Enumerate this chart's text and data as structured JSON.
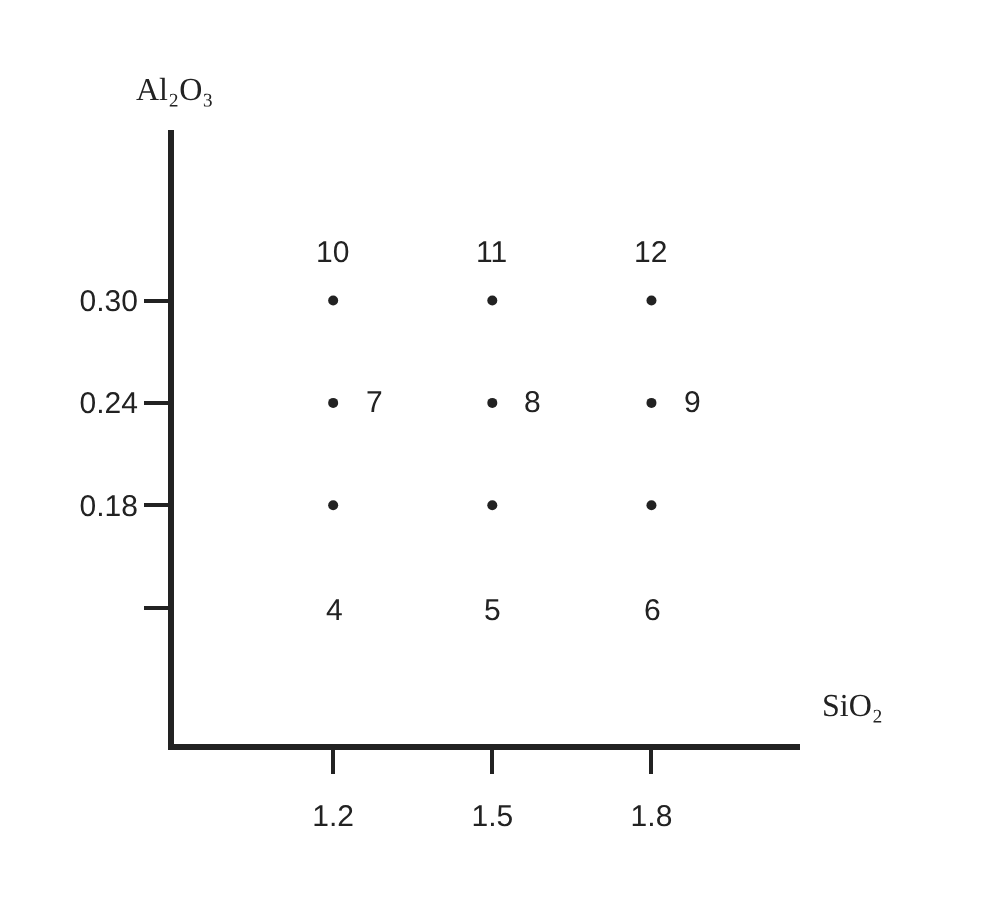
{
  "chart_data": {
    "type": "scatter",
    "xlabel": "SiO₂",
    "ylabel": "Al₂O₃",
    "x": [
      1.2,
      1.5,
      1.8,
      1.2,
      1.5,
      1.8,
      1.2,
      1.5,
      1.8
    ],
    "values": [
      0.18,
      0.18,
      0.18,
      0.24,
      0.24,
      0.24,
      0.3,
      0.3,
      0.3
    ],
    "color": "#222222",
    "marker": "circle",
    "grid": false,
    "xlim": [
      0.9,
      2.08
    ],
    "xticks": [
      1.2,
      1.5,
      1.8
    ],
    "ylim": [
      0.04,
      0.4
    ],
    "yticks": [
      {
        "value": 0.12,
        "label": null
      },
      0.18,
      0.24,
      {
        "value": 0.3,
        "label": "0.30"
      }
    ],
    "annotations": [
      {
        "text": "4",
        "x": 1.2,
        "y": 0.18
      },
      {
        "text": "5",
        "x": 1.5,
        "y": 0.18
      },
      {
        "text": "6",
        "x": 1.8,
        "y": 0.18
      },
      {
        "text": "7",
        "x": 1.2,
        "y": 0.24
      },
      {
        "text": "8",
        "x": 1.5,
        "y": 0.24
      },
      {
        "text": "9",
        "x": 1.8,
        "y": 0.24
      },
      {
        "text": "10",
        "x": 1.2,
        "y": 0.3
      },
      {
        "text": "11",
        "x": 1.5,
        "y": 0.3
      },
      {
        "text": "12",
        "x": 1.8,
        "y": 0.3
      }
    ]
  }
}
